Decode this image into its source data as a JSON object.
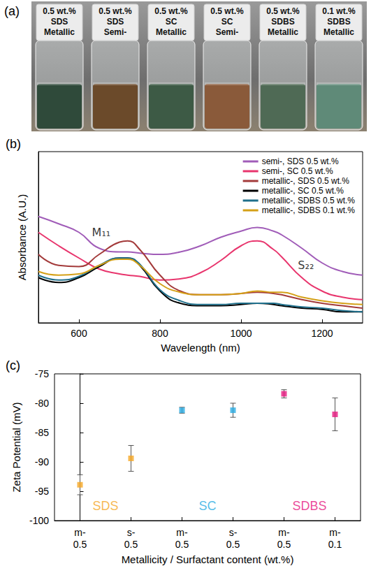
{
  "photo": {
    "panel": "(a)",
    "vials": [
      {
        "lines": [
          "0.5 wt.%",
          "SDS",
          "Metallic"
        ],
        "color": "#2f4a3a"
      },
      {
        "lines": [
          "0.5 wt.%",
          "SDS",
          "Semi-"
        ],
        "color": "#6b4a2a"
      },
      {
        "lines": [
          "0.5 wt.%",
          "SC",
          "Metallic"
        ],
        "color": "#3d5a45"
      },
      {
        "lines": [
          "0.5 wt.%",
          "SC",
          "Semi-"
        ],
        "color": "#8a5a3a"
      },
      {
        "lines": [
          "0.5 wt.%",
          "SDBS",
          "Metallic"
        ],
        "color": "#4f6a55"
      },
      {
        "lines": [
          "0.1 wt.%",
          "SDBS",
          "Metallic"
        ],
        "color": "#5f8a78"
      }
    ]
  },
  "chart_data": [
    {
      "panel": "(b)",
      "type": "line",
      "x_label": "Wavelength (nm)",
      "y_label": "Absorbance (A.U.)",
      "x": [
        500,
        550,
        600,
        650,
        700,
        720,
        750,
        800,
        850,
        900,
        950,
        1000,
        1040,
        1080,
        1100,
        1150,
        1200,
        1250,
        1300
      ],
      "series": [
        {
          "name": "semi-, SDS 0.5 wt.%",
          "color": "#a05cb8",
          "values": [
            0.87,
            0.81,
            0.74,
            0.61,
            0.58,
            0.58,
            0.57,
            0.56,
            0.58,
            0.63,
            0.7,
            0.75,
            0.78,
            0.75,
            0.72,
            0.61,
            0.49,
            0.42,
            0.39
          ]
        },
        {
          "name": "semi-, SC 0.5 wt.%",
          "color": "#e8356d",
          "values": [
            0.74,
            0.63,
            0.53,
            0.44,
            0.4,
            0.39,
            0.38,
            0.35,
            0.36,
            0.41,
            0.51,
            0.63,
            0.67,
            0.6,
            0.54,
            0.37,
            0.26,
            0.21,
            0.19
          ]
        },
        {
          "name": "metallic-, SDS 0.5 wt.%",
          "color": "#a33a3a",
          "values": [
            0.56,
            0.47,
            0.46,
            0.56,
            0.66,
            0.67,
            0.6,
            0.39,
            0.26,
            0.23,
            0.23,
            0.24,
            0.25,
            0.24,
            0.23,
            0.19,
            0.16,
            0.14,
            0.12
          ]
        },
        {
          "name": "metallic-, SC 0.5 wt.%",
          "color": "#000000",
          "values": [
            0.37,
            0.33,
            0.37,
            0.46,
            0.53,
            0.53,
            0.47,
            0.26,
            0.16,
            0.14,
            0.14,
            0.15,
            0.16,
            0.15,
            0.14,
            0.12,
            0.11,
            0.09,
            0.09
          ]
        },
        {
          "name": "metallic-, SDBS 0.5 wt.%",
          "color": "#1f6f8b",
          "values": [
            0.39,
            0.35,
            0.38,
            0.47,
            0.53,
            0.53,
            0.48,
            0.27,
            0.18,
            0.15,
            0.15,
            0.16,
            0.16,
            0.16,
            0.15,
            0.13,
            0.12,
            0.1,
            0.09
          ]
        },
        {
          "name": "metallic-, SDBS 0.1 wt.%",
          "color": "#d4a017",
          "values": [
            0.42,
            0.39,
            0.4,
            0.47,
            0.52,
            0.52,
            0.47,
            0.32,
            0.25,
            0.23,
            0.23,
            0.24,
            0.26,
            0.25,
            0.25,
            0.21,
            0.18,
            0.16,
            0.15
          ]
        }
      ],
      "xlim": [
        500,
        1300
      ],
      "xticks": [
        600,
        800,
        1000,
        1200
      ],
      "ylim": [
        0,
        1.4
      ],
      "tick_labels": "x",
      "grid": false,
      "legend": "top-right",
      "annotations": [
        {
          "text": "M₁₁",
          "x": 655,
          "y": 0.74
        },
        {
          "text": "S₂₂",
          "x": 1160,
          "y": 0.47
        }
      ]
    },
    {
      "panel": "(c)",
      "type": "scatter",
      "x_label": "Metallicity / Surfactant content (wt.%)",
      "y_label": "Zeta Potential (mV)",
      "categories": [
        "m-\n0.5",
        "s-\n0.5",
        "m-\n0.5",
        "s-\n0.5",
        "m-\n0.5",
        "m-\n0.1"
      ],
      "series": [
        {
          "name": "SDS",
          "color": "#f5a623",
          "values": [
            -93.9,
            -89.4,
            null,
            null,
            null,
            null
          ],
          "errors": [
            1.7,
            2.2,
            null,
            null,
            null,
            null
          ]
        },
        {
          "name": "SC",
          "color": "#29abe2",
          "values": [
            null,
            null,
            -81.2,
            -81.2,
            null,
            null
          ],
          "errors": [
            null,
            null,
            0.5,
            1.2,
            null,
            null
          ]
        },
        {
          "name": "SDBS",
          "color": "#e6177e",
          "values": [
            null,
            null,
            null,
            null,
            -78.4,
            -81.9
          ],
          "errors": [
            null,
            null,
            null,
            null,
            0.7,
            2.8
          ]
        }
      ],
      "ylim": [
        -100,
        -75
      ],
      "yticks": [
        -100,
        -95,
        -90,
        -85,
        -80,
        -75
      ],
      "marker": "square",
      "grid": false
    }
  ]
}
